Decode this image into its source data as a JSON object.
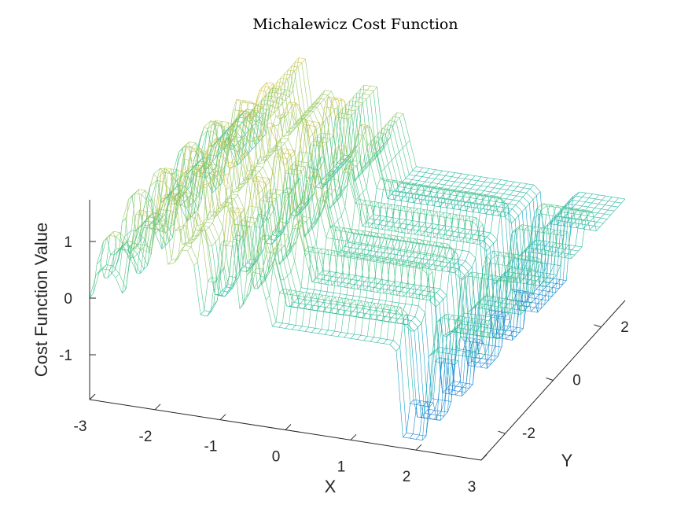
{
  "chart_data": {
    "type": "surface-mesh",
    "title": "Michalewicz Cost Function",
    "xlabel": "X",
    "ylabel": "Y",
    "zlabel": "Cost Function Value",
    "xlim": [
      -3,
      3
    ],
    "ylim": [
      -3,
      3
    ],
    "zlim": [
      -1.8,
      1.8
    ],
    "x_ticks": [
      "-3",
      "-2",
      "-1",
      "0",
      "1",
      "2",
      "3"
    ],
    "y_ticks": [
      "-2",
      "0",
      "2"
    ],
    "z_ticks": [
      "-1",
      "0",
      "1"
    ],
    "colormap": [
      "#1f7fd6",
      "#19a3c8",
      "#26b8a0",
      "#52c68a",
      "#9ccb6c",
      "#d2c85a",
      "#f0d44a"
    ],
    "grid": false,
    "surface": {
      "x_steps": 61,
      "y_steps": 41,
      "x_bands": [
        {
          "center": -2.75,
          "width": 0.12,
          "height": 0.55
        },
        {
          "center": -2.3,
          "width": 0.12,
          "height": 1.0
        },
        {
          "center": -1.95,
          "width": 0.1,
          "height": 1.6
        },
        {
          "center": -1.55,
          "width": 0.12,
          "height": 1.1
        },
        {
          "center": -0.9,
          "width": 0.12,
          "height": 1.3
        },
        {
          "center": -0.45,
          "width": 0.1,
          "height": 0.9
        }
      ],
      "y_bands": [
        {
          "center": -2.6,
          "width": 0.12,
          "height": 0.45
        },
        {
          "center": -1.6,
          "width": 0.12,
          "height": 0.7
        },
        {
          "center": -0.6,
          "width": 0.12,
          "height": 0.65
        },
        {
          "center": 0.5,
          "width": 0.12,
          "height": 0.55
        },
        {
          "center": 1.5,
          "width": 0.12,
          "height": 0.5
        }
      ],
      "dip": {
        "center": 1.95,
        "width": 0.15,
        "depth": -1.6
      }
    }
  }
}
